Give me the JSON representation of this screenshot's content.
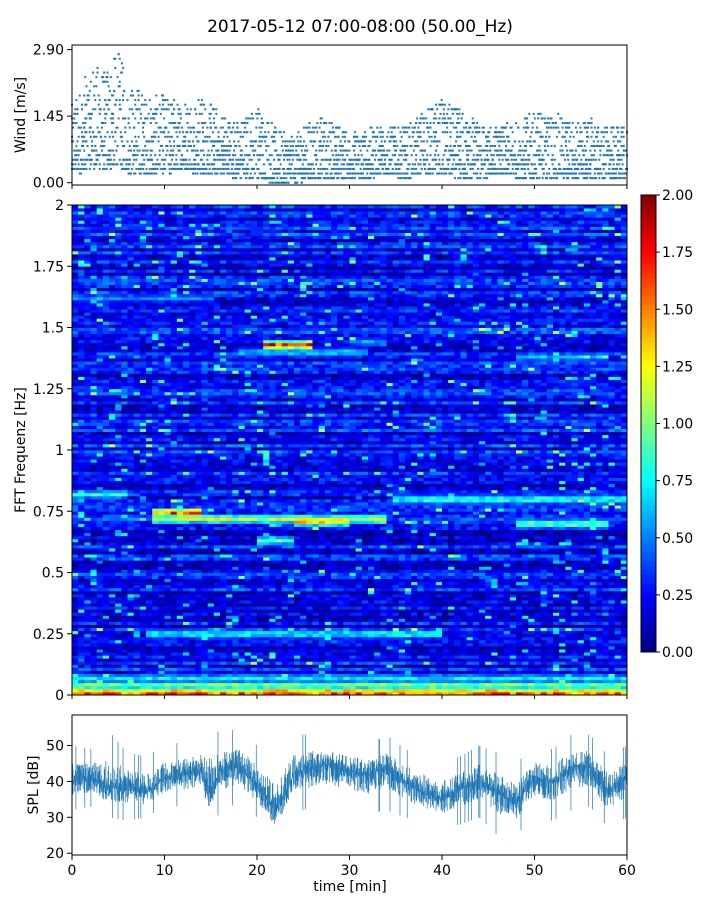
{
  "figure": {
    "title": "2017-05-12 07:00-08:00 (50.00_Hz)"
  },
  "chart_data": [
    {
      "id": "wind",
      "type": "scatter",
      "xlabel": "",
      "ylabel": "Wind [m/s]",
      "xlim": [
        0,
        60
      ],
      "ylim": [
        -0.05,
        3.0
      ],
      "yticks": [
        0.0,
        1.45,
        2.9
      ],
      "ytick_labels": [
        "0.00",
        "1.45",
        "2.90"
      ],
      "series_color": "#1f77b4",
      "envelope": {
        "x": [
          0,
          2,
          4,
          5,
          6,
          8,
          10,
          12,
          14,
          16,
          18,
          20,
          22,
          24,
          26,
          28,
          30,
          32,
          34,
          36,
          38,
          40,
          42,
          44,
          46,
          48,
          50,
          52,
          54,
          56,
          58,
          60
        ],
        "min": [
          0.2,
          0.3,
          0.3,
          0.4,
          0.2,
          0.2,
          0.2,
          0.3,
          0.2,
          0.2,
          0.1,
          0.1,
          0.0,
          0.0,
          0.1,
          0.1,
          0.1,
          0.1,
          0.2,
          0.1,
          0.2,
          0.2,
          0.1,
          0.1,
          0.2,
          0.1,
          0.1,
          0.1,
          0.1,
          0.1,
          0.1,
          0.1
        ],
        "max": [
          1.7,
          2.5,
          2.6,
          2.9,
          2.3,
          1.9,
          1.9,
          1.8,
          1.9,
          1.6,
          1.3,
          1.7,
          1.2,
          1.0,
          1.4,
          1.4,
          1.1,
          1.2,
          1.3,
          1.2,
          1.6,
          1.8,
          1.6,
          1.3,
          1.2,
          1.3,
          1.6,
          1.5,
          1.4,
          1.4,
          1.2,
          1.2
        ]
      }
    },
    {
      "id": "spectrogram",
      "type": "heatmap",
      "xlabel": "",
      "ylabel": "FFT Frequenz [Hz]",
      "xlim": [
        0,
        60
      ],
      "ylim": [
        0,
        2
      ],
      "yticks": [
        0,
        0.25,
        0.5,
        0.75,
        1,
        1.25,
        1.5,
        1.75,
        2
      ],
      "ytick_labels": [
        "0",
        "0.25",
        "0.5",
        "0.75",
        "1",
        "1.25",
        "1.5",
        "1.75",
        "2"
      ],
      "colormap": "jet",
      "colorbar": {
        "range": [
          0.0,
          2.0
        ],
        "ticks": [
          0.0,
          0.25,
          0.5,
          0.75,
          1.0,
          1.25,
          1.5,
          1.75,
          2.0
        ],
        "tick_labels": [
          "0.00",
          "0.25",
          "0.50",
          "0.75",
          "1.00",
          "1.25",
          "1.50",
          "1.75",
          "2.00"
        ]
      },
      "base_level": 0.25,
      "features": [
        {
          "f": 0.01,
          "t0": 0,
          "t1": 60,
          "v": 1.9
        },
        {
          "f": 0.04,
          "t0": 0,
          "t1": 60,
          "v": 1.2
        },
        {
          "f": 0.07,
          "t0": 0,
          "t1": 60,
          "v": 0.8
        },
        {
          "f": 0.25,
          "t0": 8,
          "t1": 40,
          "v": 0.9
        },
        {
          "f": 0.72,
          "t0": 9,
          "t1": 34,
          "v": 1.3
        },
        {
          "f": 0.745,
          "t0": 9,
          "t1": 14,
          "v": 1.8
        },
        {
          "f": 0.71,
          "t0": 24,
          "t1": 30,
          "v": 1.6
        },
        {
          "f": 0.63,
          "t0": 20,
          "t1": 24,
          "v": 1.0
        },
        {
          "f": 0.82,
          "t0": 0,
          "t1": 6,
          "v": 0.9
        },
        {
          "f": 0.8,
          "t0": 35,
          "t1": 60,
          "v": 1.0
        },
        {
          "f": 0.7,
          "t0": 48,
          "t1": 58,
          "v": 1.2
        },
        {
          "f": 1.43,
          "t0": 21,
          "t1": 26,
          "v": 1.9
        },
        {
          "f": 1.4,
          "t0": 18,
          "t1": 32,
          "v": 0.8
        },
        {
          "f": 1.44,
          "t0": 31,
          "t1": 34,
          "v": 0.7
        },
        {
          "f": 1.38,
          "t0": 48,
          "t1": 58,
          "v": 0.7
        },
        {
          "f": 1.62,
          "t0": 0,
          "t1": 15,
          "v": 0.6
        }
      ]
    },
    {
      "id": "spl",
      "type": "line",
      "xlabel": "time [min]",
      "ylabel": "SPL [dB]",
      "xlim": [
        0,
        60
      ],
      "ylim": [
        19.5,
        58.5
      ],
      "yticks": [
        20,
        30,
        40,
        50
      ],
      "ytick_labels": [
        "20",
        "30",
        "40",
        "50"
      ],
      "xticks": [
        0,
        10,
        20,
        30,
        40,
        50,
        60
      ],
      "xtick_labels": [
        "0",
        "10",
        "20",
        "30",
        "40",
        "50",
        "60"
      ],
      "series_color": "#1f77b4",
      "envelope": {
        "x": [
          0,
          2,
          4,
          6,
          8,
          10,
          12,
          14,
          15,
          16,
          18,
          20,
          22,
          24,
          26,
          28,
          30,
          32,
          34,
          36,
          38,
          40,
          42,
          44,
          46,
          48,
          50,
          52,
          54,
          56,
          58,
          60
        ],
        "mean": [
          40,
          41,
          38,
          39,
          37,
          41,
          42,
          43,
          36,
          43,
          44,
          39,
          32,
          42,
          44,
          45,
          43,
          42,
          44,
          40,
          37,
          35,
          38,
          40,
          37,
          34,
          41,
          40,
          44,
          44,
          37,
          41
        ],
        "min": [
          32,
          33,
          30,
          29,
          30,
          33,
          33,
          34,
          25,
          32,
          34,
          30,
          22,
          31,
          33,
          33,
          32,
          31,
          32,
          30,
          28,
          27,
          28,
          30,
          25,
          25,
          30,
          29,
          32,
          33,
          27,
          30
        ],
        "max": [
          50,
          49,
          54,
          48,
          47,
          50,
          51,
          52,
          57,
          53,
          55,
          50,
          46,
          53,
          53,
          52,
          51,
          50,
          53,
          49,
          47,
          45,
          47,
          50,
          48,
          45,
          50,
          49,
          53,
          53,
          47,
          50
        ]
      }
    }
  ]
}
